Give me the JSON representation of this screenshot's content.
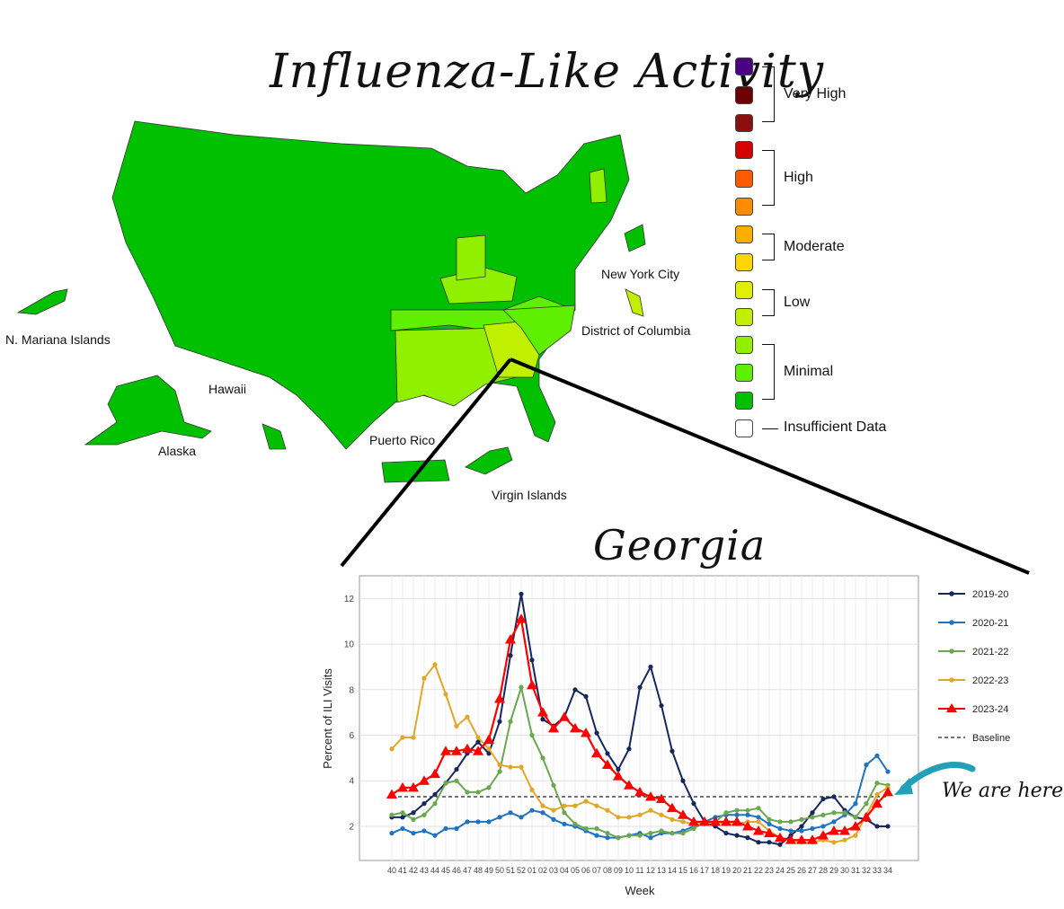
{
  "map": {
    "title": "Influenza-Like Activity",
    "labels": {
      "n_mariana": "N. Mariana Islands",
      "hawaii": "Hawaii",
      "alaska": "Alaska",
      "puerto_rico": "Puerto Rico",
      "virgin_islands": "Virgin Islands",
      "nyc": "New York City",
      "dc": "District of Columbia"
    },
    "colors": {
      "minimal_low": "#00c000",
      "minimal_mid": "#5ef000",
      "minimal_high": "#90f000",
      "low_low": "#c0f000",
      "low_high": "#e0f000",
      "ga": "#c0f000"
    }
  },
  "legend": {
    "swatches": [
      "#4b0082",
      "#6b0000",
      "#8b0f0f",
      "#d40000",
      "#ff5a00",
      "#ff8c00",
      "#ffae00",
      "#ffd700",
      "#e0f000",
      "#c0f000",
      "#90f000",
      "#5ef000",
      "#00c000",
      "#ffffff"
    ],
    "groups": {
      "very_high": "Very High",
      "high": "High",
      "moderate": "Moderate",
      "low": "Low",
      "minimal": "Minimal",
      "insufficient": "Insufficient Data"
    }
  },
  "annotation": {
    "text": "We are here"
  },
  "chart_data": {
    "type": "line",
    "title": "Georgia",
    "xlabel": "Week",
    "ylabel": "Percent of ILI Visits",
    "ylim": [
      0.5,
      13
    ],
    "yticks": [
      2,
      4,
      6,
      8,
      10,
      12
    ],
    "x": [
      "40",
      "41",
      "42",
      "43",
      "44",
      "45",
      "46",
      "47",
      "48",
      "49",
      "50",
      "51",
      "52",
      "01",
      "02",
      "03",
      "04",
      "05",
      "06",
      "07",
      "08",
      "09",
      "10",
      "11",
      "12",
      "13",
      "14",
      "15",
      "16",
      "17",
      "18",
      "19",
      "20",
      "21",
      "22",
      "23",
      "24",
      "25",
      "26",
      "27",
      "28",
      "29",
      "30",
      "31",
      "32",
      "33",
      "34"
    ],
    "grid": true,
    "legend_position": "right",
    "baseline": {
      "name": "Baseline",
      "value": 3.3
    },
    "series": [
      {
        "name": "2019-20",
        "color": "#14285e",
        "marker": "circle",
        "values": [
          2.4,
          2.4,
          2.6,
          3.0,
          3.4,
          3.9,
          4.5,
          5.2,
          5.7,
          5.2,
          6.6,
          9.5,
          12.2,
          9.3,
          6.7,
          6.4,
          6.8,
          8.0,
          7.7,
          6.1,
          5.2,
          4.5,
          5.4,
          8.1,
          9.0,
          7.3,
          5.3,
          4.0,
          3.0,
          2.2,
          2.0,
          1.7,
          1.6,
          1.5,
          1.3,
          1.3,
          1.2,
          1.6,
          2.0,
          2.6,
          3.2,
          3.3,
          2.7,
          2.4,
          2.3,
          2.0,
          2.0
        ]
      },
      {
        "name": "2020-21",
        "color": "#1f73c0",
        "marker": "circle",
        "values": [
          1.7,
          1.9,
          1.7,
          1.8,
          1.6,
          1.9,
          1.9,
          2.2,
          2.2,
          2.2,
          2.4,
          2.6,
          2.4,
          2.7,
          2.6,
          2.3,
          2.1,
          2.0,
          1.8,
          1.6,
          1.5,
          1.5,
          1.6,
          1.7,
          1.5,
          1.7,
          1.7,
          1.8,
          2.0,
          2.2,
          2.4,
          2.5,
          2.5,
          2.5,
          2.4,
          2.1,
          1.9,
          1.8,
          1.8,
          1.9,
          2.0,
          2.2,
          2.5,
          3.0,
          4.7,
          5.1,
          4.4
        ]
      },
      {
        "name": "2021-22",
        "color": "#6aa84f",
        "marker": "circle",
        "values": [
          2.5,
          2.6,
          2.3,
          2.5,
          3.0,
          3.9,
          4.0,
          3.5,
          3.5,
          3.7,
          4.4,
          6.6,
          8.1,
          6.0,
          5.0,
          3.8,
          2.6,
          2.1,
          1.9,
          1.9,
          1.7,
          1.5,
          1.6,
          1.6,
          1.7,
          1.8,
          1.7,
          1.7,
          1.9,
          2.2,
          2.2,
          2.6,
          2.7,
          2.7,
          2.8,
          2.3,
          2.2,
          2.2,
          2.3,
          2.4,
          2.5,
          2.6,
          2.6,
          2.4,
          3.0,
          3.9,
          3.8
        ]
      },
      {
        "name": "2022-23",
        "color": "#e3a626",
        "marker": "circle",
        "values": [
          5.4,
          5.9,
          5.9,
          8.5,
          9.1,
          7.8,
          6.4,
          6.8,
          5.9,
          5.4,
          4.7,
          4.6,
          4.6,
          3.6,
          2.9,
          2.7,
          2.9,
          2.9,
          3.1,
          2.9,
          2.7,
          2.4,
          2.4,
          2.5,
          2.7,
          2.5,
          2.3,
          2.2,
          2.1,
          2.1,
          2.2,
          2.1,
          2.1,
          2.2,
          2.2,
          1.8,
          1.5,
          1.4,
          1.3,
          1.3,
          1.4,
          1.3,
          1.4,
          1.6,
          2.5,
          3.4,
          3.7
        ]
      },
      {
        "name": "2023-24",
        "color": "#ff0000",
        "marker": "triangle",
        "values": [
          3.4,
          3.7,
          3.7,
          4.0,
          4.3,
          5.3,
          5.3,
          5.4,
          5.3,
          5.8,
          7.6,
          10.2,
          11.1,
          8.2,
          7.0,
          6.3,
          6.8,
          6.3,
          6.1,
          5.2,
          4.7,
          4.2,
          3.8,
          3.5,
          3.3,
          3.2,
          2.8,
          2.5,
          2.2,
          2.2,
          2.2,
          2.2,
          2.2,
          2.0,
          1.8,
          1.7,
          1.5,
          1.4,
          1.4,
          1.4,
          1.6,
          1.8,
          1.8,
          2.0,
          2.4,
          3.0,
          3.5
        ]
      }
    ]
  }
}
